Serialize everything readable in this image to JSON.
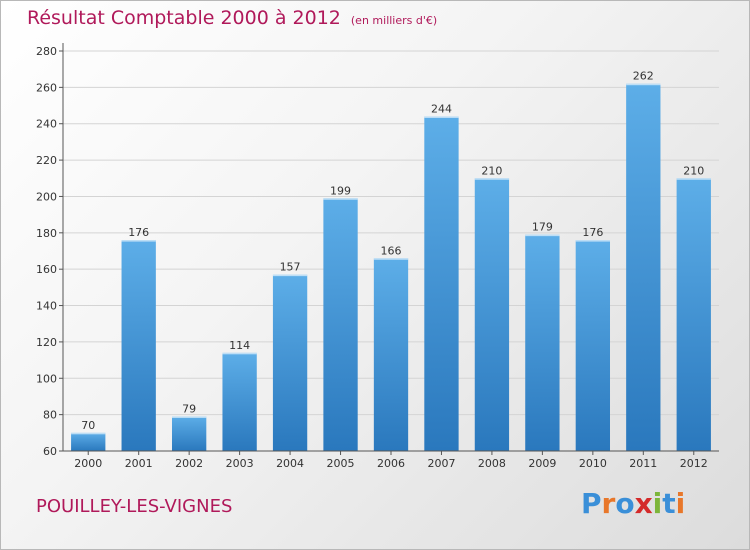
{
  "header": {
    "title": "Résultat Comptable 2000 à 2012",
    "unit": "(en milliers d'€)"
  },
  "footer": {
    "commune": "POUILLEY-LES-VIGNES",
    "logo": {
      "letters": [
        "P",
        "r",
        "o",
        "x",
        "i",
        "t",
        "i"
      ],
      "colors": [
        "#3a8fd8",
        "#e8772a",
        "#3a8fd8",
        "#d42a2a",
        "#7cb53a",
        "#3a8fd8",
        "#e8772a"
      ]
    }
  },
  "chart_data": {
    "type": "bar",
    "categories": [
      "2000",
      "2001",
      "2002",
      "2003",
      "2004",
      "2005",
      "2006",
      "2007",
      "2008",
      "2009",
      "2010",
      "2011",
      "2012"
    ],
    "values": [
      70,
      176,
      79,
      114,
      157,
      199,
      166,
      244,
      210,
      179,
      176,
      262,
      210
    ],
    "ylim": [
      60,
      280
    ],
    "yticks": [
      60,
      80,
      100,
      120,
      140,
      160,
      180,
      200,
      220,
      240,
      260,
      280
    ],
    "grid": true,
    "bar_color_top": "#5daee8",
    "bar_color_bottom": "#2a78bd"
  }
}
